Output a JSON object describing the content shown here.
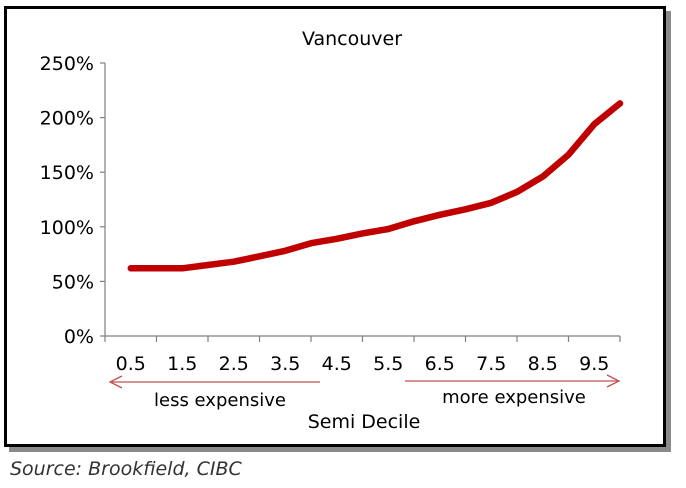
{
  "chart_data": {
    "type": "line",
    "title": "Vancouver",
    "xlabel": "Semi Decile",
    "ylabel": "",
    "x_ticks": [
      "0.5",
      "1.5",
      "2.5",
      "3.5",
      "4.5",
      "5.5",
      "6.5",
      "7.5",
      "8.5",
      "9.5"
    ],
    "y_ticks": [
      "0%",
      "50%",
      "100%",
      "150%",
      "200%",
      "250%"
    ],
    "ylim": [
      0,
      250
    ],
    "xlim": [
      0,
      10
    ],
    "grid": false,
    "series": [
      {
        "color": "#c00000",
        "x": [
          0.5,
          1,
          1.5,
          2,
          2.5,
          3,
          3.5,
          4,
          4.5,
          5,
          5.5,
          6,
          6.5,
          7,
          7.5,
          8,
          8.5,
          9,
          9.5,
          10
        ],
        "values": [
          62,
          62,
          62,
          65,
          68,
          73,
          78,
          85,
          89,
          94,
          98,
          105,
          111,
          116,
          122,
          132,
          146,
          166,
          194,
          213
        ]
      }
    ],
    "annotations": {
      "left_label": "less expensive",
      "right_label": "more expensive",
      "arrow_color": "#c0504d"
    }
  },
  "footer": {
    "source": "Source: Brookfield, CIBC"
  }
}
